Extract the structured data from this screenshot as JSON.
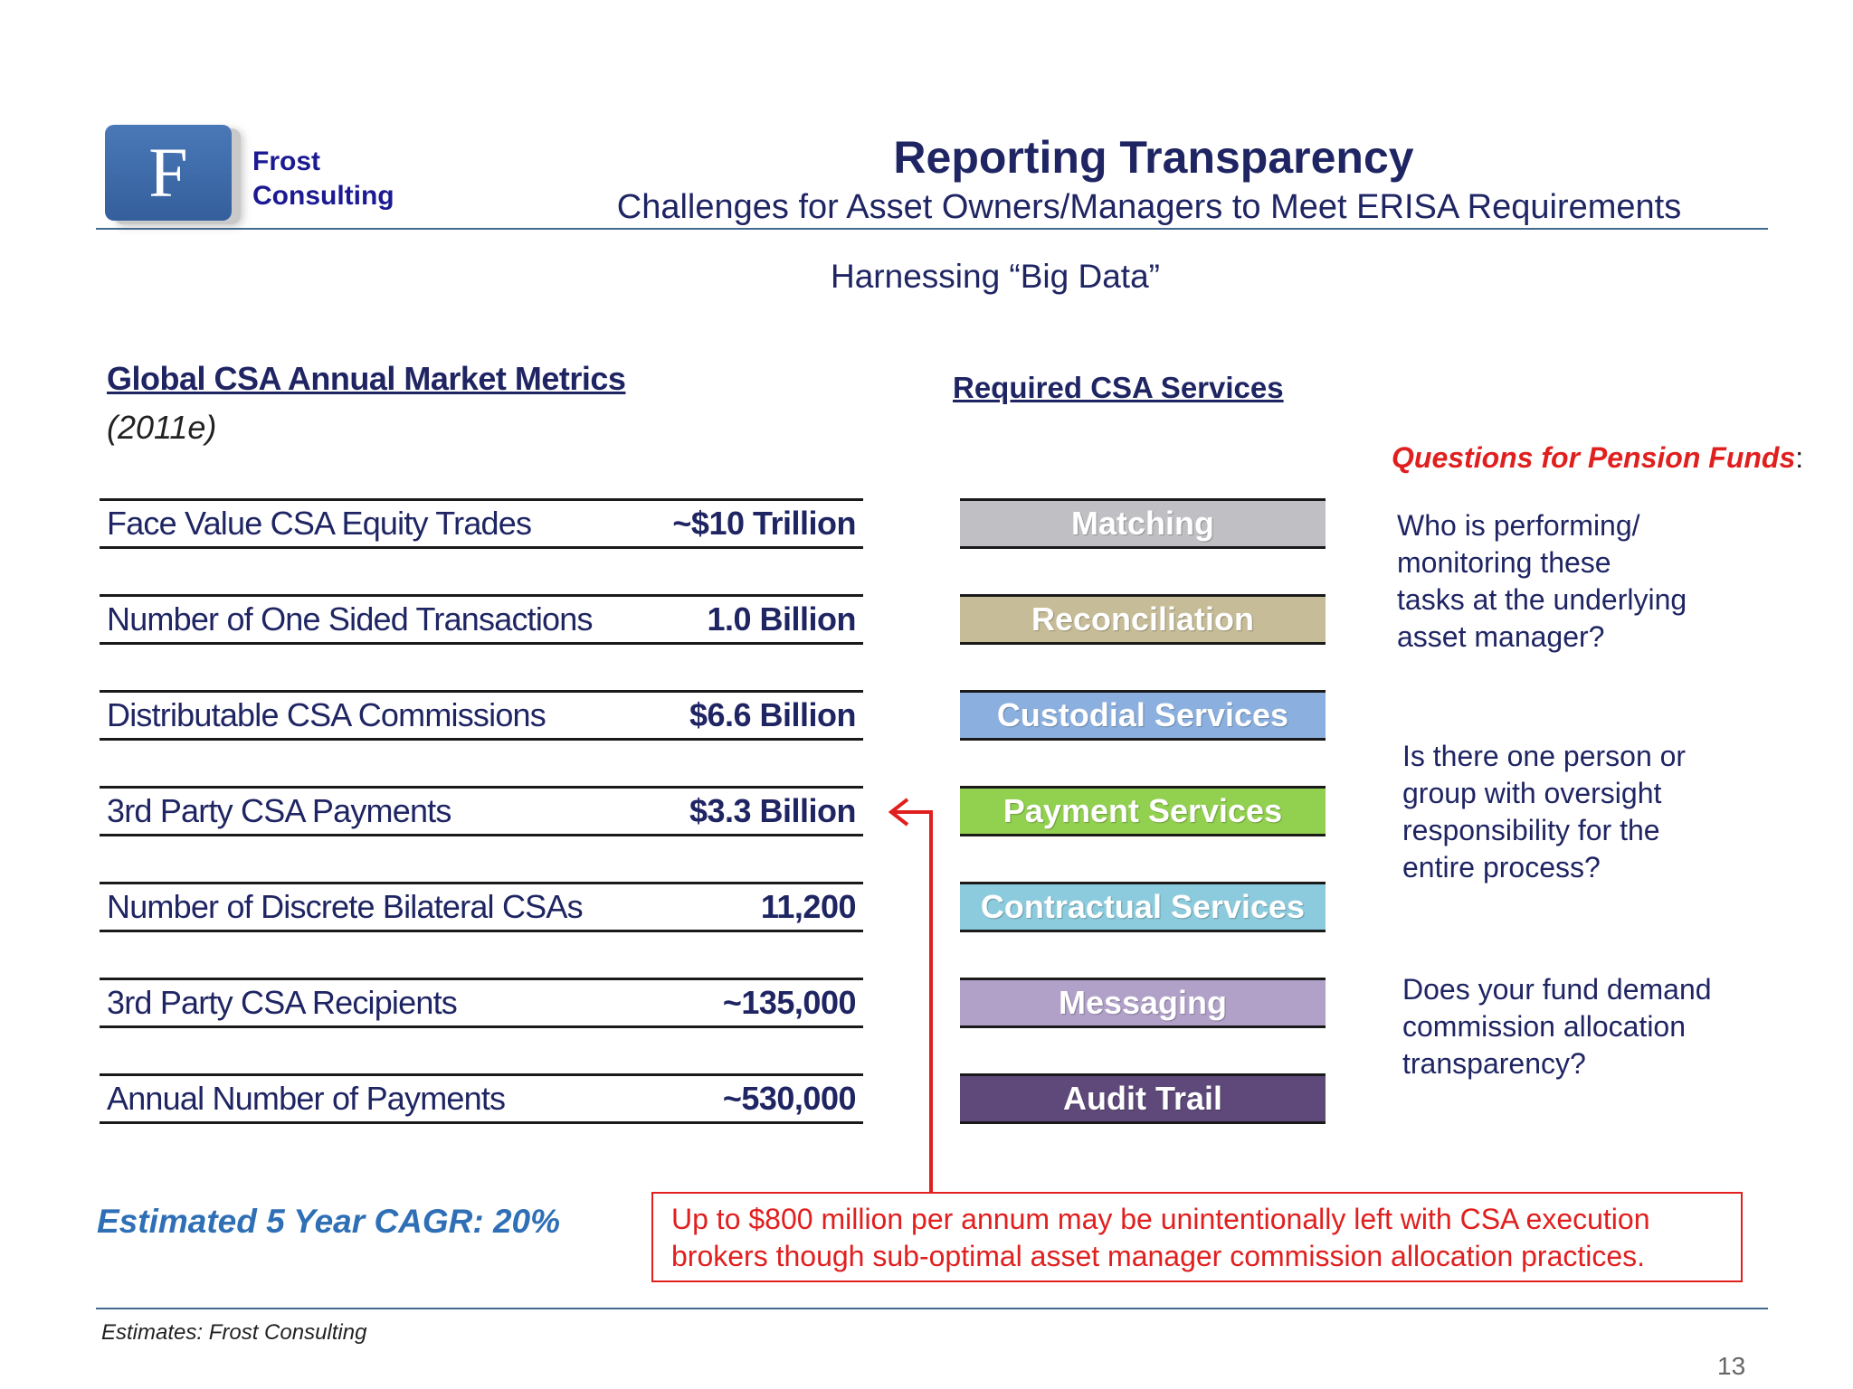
{
  "logo": {
    "letter": "F",
    "line1": "Frost",
    "line2": "Consulting"
  },
  "header": {
    "title": "Reporting Transparency",
    "subtitle": "Challenges for Asset Owners/Managers to Meet ERISA Requirements",
    "tagline": "Harnessing “Big Data”"
  },
  "metrics": {
    "heading": "Global CSA Annual Market Metrics",
    "period": "(2011e)",
    "rows": [
      {
        "label": "Face Value CSA Equity Trades",
        "value": "~$10 Trillion"
      },
      {
        "label": "Number of One Sided Transactions",
        "value": "1.0 Billion"
      },
      {
        "label": "Distributable CSA Commissions",
        "value": "$6.6 Billion"
      },
      {
        "label": "3rd Party CSA Payments",
        "value": "$3.3 Billion"
      },
      {
        "label": "Number of Discrete Bilateral CSAs",
        "value": "11,200"
      },
      {
        "label": "3rd Party CSA Recipients",
        "value": "~135,000"
      },
      {
        "label": "Annual Number of Payments",
        "value": "~530,000"
      }
    ]
  },
  "services": {
    "heading": "Required CSA Services",
    "items": [
      {
        "label": "Matching",
        "color": "#c0c0c4"
      },
      {
        "label": "Reconciliation",
        "color": "#c6bc97"
      },
      {
        "label": "Custodial Services",
        "color": "#8bb0e0"
      },
      {
        "label": "Payment Services",
        "color": "#92d050"
      },
      {
        "label": "Contractual Services",
        "color": "#8ccbdd"
      },
      {
        "label": "Messaging",
        "color": "#b1a1c9"
      },
      {
        "label": "Audit Trail",
        "color": "#5f497a"
      }
    ]
  },
  "questions": {
    "heading": "Questions for Pension Funds",
    "heading_suffix": ":",
    "items": [
      {
        "lines": [
          "Who is performing/",
          "monitoring these",
          "tasks at the underlying",
          "asset manager?"
        ]
      },
      {
        "lines": [
          "Is there one person or",
          "group with oversight",
          "responsibility for the",
          "entire process?"
        ]
      },
      {
        "lines": [
          "Does your fund demand",
          "commission allocation",
          "transparency?"
        ]
      }
    ]
  },
  "cagr": "Estimated 5 Year CAGR: 20%",
  "callout": {
    "line1": "Up to $800 million per annum may be unintentionally left with CSA execution",
    "line2": "brokers though sub-optimal asset manager commission allocation practices."
  },
  "footer": {
    "note": "Estimates:  Frost Consulting",
    "page": "13"
  },
  "colors": {
    "navy": "#1f2563",
    "red": "#e01f1f",
    "cagr": "#2f6fb5"
  }
}
